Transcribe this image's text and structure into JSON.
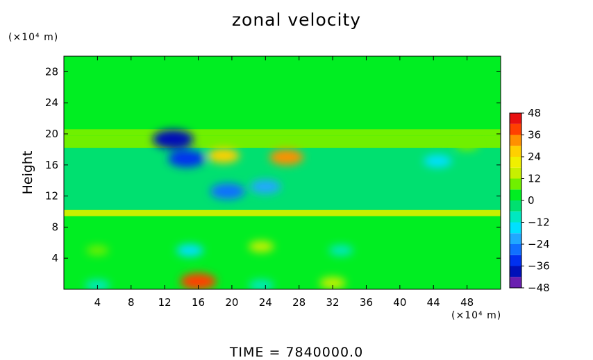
{
  "chart_data": {
    "type": "heatmap",
    "title": "zonal velocity",
    "ylabel": "Height",
    "xlabel": "",
    "x_unit": "(×10⁴ m)",
    "y_unit": "(×10⁴ m)",
    "xlim": [
      0,
      52
    ],
    "ylim": [
      0,
      30
    ],
    "x_ticks": [
      4,
      8,
      12,
      16,
      20,
      24,
      28,
      32,
      36,
      40,
      44,
      48
    ],
    "y_ticks": [
      4,
      8,
      12,
      16,
      20,
      24,
      28
    ],
    "colorbar": {
      "ticks": [
        48,
        36,
        24,
        12,
        0,
        -12,
        -24,
        -36,
        -48
      ],
      "range": [
        -48,
        48
      ]
    },
    "features": [
      {
        "x": 13,
        "y": 19.3,
        "value": -44
      },
      {
        "x": 14.6,
        "y": 16.8,
        "value": -36
      },
      {
        "x": 19.5,
        "y": 12.6,
        "value": -32
      },
      {
        "x": 24,
        "y": 13.2,
        "value": -24
      },
      {
        "x": 16,
        "y": 1.0,
        "value": 34
      },
      {
        "x": 26.5,
        "y": 17.0,
        "value": 30
      },
      {
        "x": 19,
        "y": 17.2,
        "value": 26
      },
      {
        "x": 23.5,
        "y": 5.5,
        "value": 12
      },
      {
        "x": 32,
        "y": 0.8,
        "value": 14
      },
      {
        "x": 4,
        "y": 5,
        "value": 6
      },
      {
        "x": 15,
        "y": 5,
        "value": -16
      },
      {
        "x": 4,
        "y": 0.5,
        "value": -12
      },
      {
        "x": 23.5,
        "y": 0.5,
        "value": -12
      },
      {
        "x": 33,
        "y": 5,
        "value": -10
      },
      {
        "x": 44.5,
        "y": 16.5,
        "value": -18
      },
      {
        "x": 48,
        "y": 18.5,
        "value": 8
      }
    ]
  },
  "footer": "TIME  =  7840000.0"
}
